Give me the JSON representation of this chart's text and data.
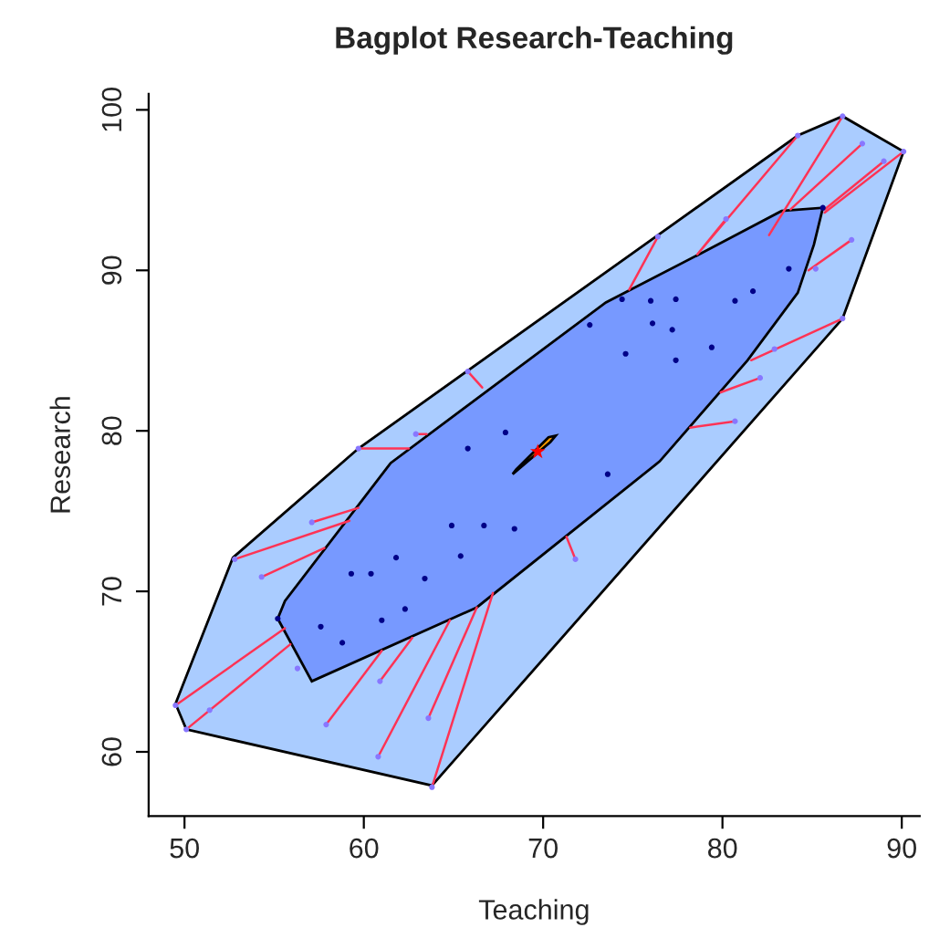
{
  "chart_data": {
    "type": "scatter",
    "title": "Bagplot Research-Teaching",
    "xlabel": "Teaching",
    "ylabel": "Research",
    "xlim": [
      48,
      91
    ],
    "ylim": [
      56,
      101
    ],
    "xticks": [
      50,
      60,
      70,
      80,
      90
    ],
    "yticks": [
      60,
      70,
      80,
      90,
      100
    ],
    "grid": false,
    "series": [
      {
        "type": "area",
        "color": "#aaccff",
        "x": [
          49.5,
          50.1,
          63.8,
          86.7,
          90.1,
          86.7,
          84.2,
          59.7,
          52.7
        ],
        "values": [
          63.0,
          61.4,
          57.9,
          87.0,
          97.4,
          99.6,
          98.4,
          78.9,
          72.1
        ]
      },
      {
        "type": "area",
        "color": "#7799ff",
        "x": [
          55.2,
          57.1,
          66.3,
          76.5,
          81.4,
          84.2,
          85.1,
          85.6,
          83.3,
          78.7,
          73.5,
          61.5,
          55.6
        ],
        "values": [
          68.3,
          64.4,
          69.0,
          78.1,
          84.4,
          88.6,
          91.6,
          93.9,
          93.7,
          91.0,
          88.0,
          78.0,
          69.4
        ]
      },
      {
        "type": "line",
        "color": "#ff3355",
        "x": [
          65.8,
          66.6,
          null,
          62.9,
          63.5,
          null,
          59.7,
          62.5,
          null,
          76.4,
          74.8,
          null,
          80.2,
          78.6,
          null,
          84.2,
          78.6,
          null,
          86.7,
          82.6,
          null,
          87.8,
          83.8,
          null,
          89.0,
          85.7,
          null,
          90.1,
          85.7,
          null,
          87.2,
          84.8,
          null,
          86.7,
          81.6,
          null,
          82.1,
          79.9,
          null,
          80.7,
          78.2,
          null,
          71.8,
          71.3,
          null,
          57.1,
          59.7,
          null,
          52.8,
          59.2,
          null,
          54.3,
          57.8,
          null,
          49.5,
          55.6,
          null,
          50.1,
          55.9,
          null,
          57.9,
          61.0,
          null,
          60.9,
          62.7,
          null,
          60.8,
          64.8,
          null,
          63.6,
          66.3,
          null,
          63.8,
          67.2
        ],
        "values": [
          83.7,
          82.7,
          null,
          79.8,
          79.8,
          null,
          78.9,
          78.9,
          null,
          92.1,
          88.8,
          null,
          93.2,
          91.0,
          null,
          98.4,
          91.0,
          null,
          99.6,
          92.2,
          null,
          97.9,
          93.8,
          null,
          96.8,
          93.8,
          null,
          97.4,
          93.6,
          null,
          91.9,
          90.0,
          null,
          87.0,
          84.4,
          null,
          83.3,
          82.4,
          null,
          80.6,
          80.2,
          null,
          72.0,
          73.4,
          null,
          74.3,
          75.2,
          null,
          72.0,
          74.4,
          null,
          70.9,
          72.7,
          null,
          62.9,
          67.7,
          null,
          61.4,
          66.7,
          null,
          61.7,
          66.3,
          null,
          64.4,
          67.1,
          null,
          59.7,
          68.2,
          null,
          62.1,
          69.0,
          null,
          57.8,
          69.9
        ]
      },
      {
        "type": "area",
        "color": "#ff9900",
        "x": [
          68.3,
          70.4,
          70.7,
          70.3,
          68.5
        ],
        "values": [
          77.3,
          79.3,
          79.7,
          79.6,
          77.6
        ]
      },
      {
        "marker": "circle",
        "color": "#000088",
        "x": [
          74.4,
          76.0,
          77.4,
          80.7,
          81.7,
          83.7,
          72.6,
          76.1,
          77.2,
          74.6,
          77.4,
          79.4,
          67.9,
          65.8,
          64.9,
          66.7,
          68.4,
          61.8,
          65.4,
          59.3,
          60.4,
          63.4,
          62.3,
          61.0,
          57.6,
          58.8,
          73.6,
          55.2,
          85.6
        ],
        "values": [
          88.2,
          88.1,
          88.2,
          88.1,
          88.7,
          90.1,
          86.6,
          86.7,
          86.3,
          84.8,
          84.4,
          85.2,
          79.9,
          78.9,
          74.1,
          74.1,
          73.9,
          72.1,
          72.2,
          71.1,
          71.1,
          70.8,
          68.9,
          68.2,
          67.8,
          66.8,
          77.3,
          68.3,
          93.9
        ]
      },
      {
        "marker": "circle",
        "color": "#8877ff",
        "x": [
          65.8,
          62.9,
          59.7,
          76.4,
          80.2,
          84.2,
          86.7,
          87.8,
          89.0,
          90.1,
          87.2,
          85.2,
          86.7,
          82.9,
          82.1,
          80.7,
          71.8,
          57.1,
          52.8,
          54.3,
          49.5,
          50.1,
          51.4,
          56.3,
          57.9,
          60.9,
          60.8,
          63.6,
          63.8
        ],
        "values": [
          83.7,
          79.8,
          78.9,
          92.1,
          93.2,
          98.4,
          99.6,
          97.9,
          96.8,
          97.4,
          91.9,
          90.1,
          87.0,
          85.1,
          83.3,
          80.6,
          72.0,
          74.3,
          72.0,
          70.9,
          62.9,
          61.4,
          62.6,
          65.2,
          61.7,
          64.4,
          59.7,
          62.1,
          57.8
        ]
      },
      {
        "marker": "star",
        "color": "#ff0000",
        "x": [
          69.7
        ],
        "values": [
          78.7
        ]
      }
    ]
  }
}
